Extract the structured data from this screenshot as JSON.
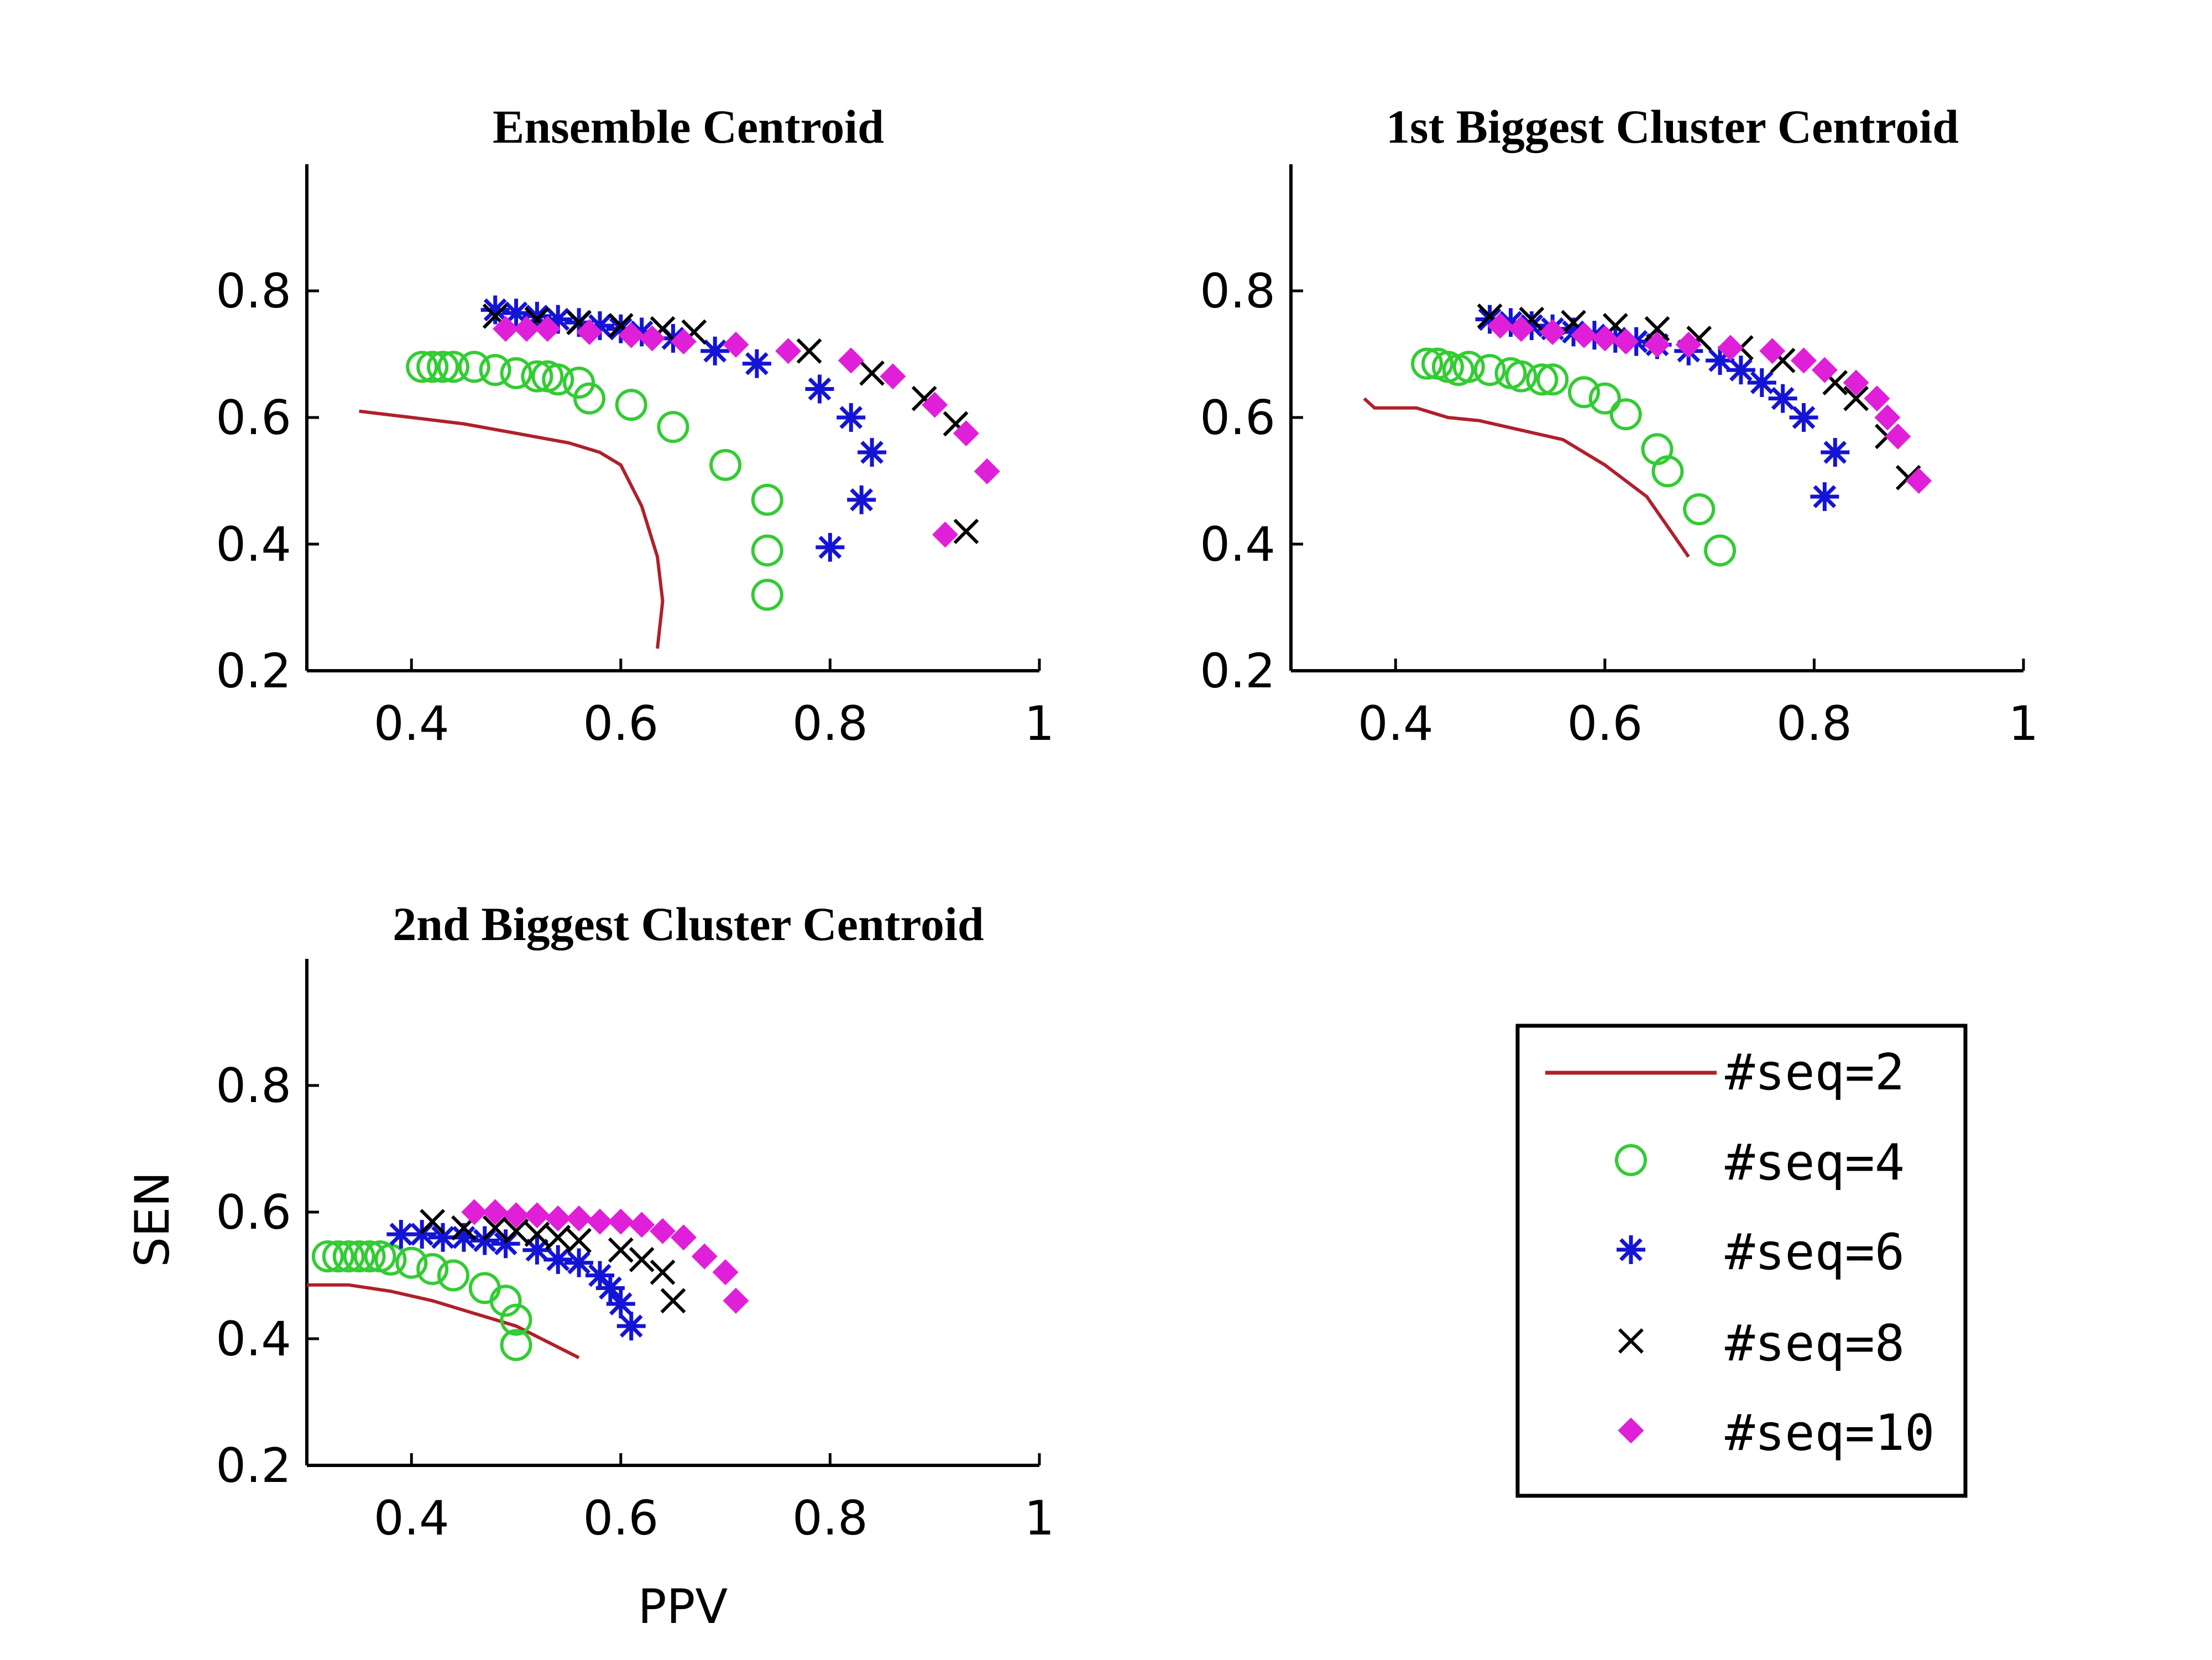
{
  "colors": {
    "seq2": "#b0202a",
    "seq4": "#33cc33",
    "seq6": "#1414d6",
    "seq8": "#000000",
    "seq10": "#e020d8"
  },
  "chart_data": [
    {
      "type": "line",
      "title": "Ensemble Centroid",
      "xlabel": "",
      "ylabel": "",
      "xlim": [
        0.3,
        1.0
      ],
      "ylim": [
        0.2,
        1.0
      ],
      "xticks": [
        "0.4",
        "0.6",
        "0.8",
        "1"
      ],
      "yticks": [
        "0.2",
        "0.4",
        "0.6",
        "0.8"
      ],
      "series": [
        {
          "key": "seq2",
          "style": "line",
          "points": [
            [
              0.35,
              0.61
            ],
            [
              0.4,
              0.6
            ],
            [
              0.45,
              0.59
            ],
            [
              0.5,
              0.575
            ],
            [
              0.55,
              0.56
            ],
            [
              0.58,
              0.545
            ],
            [
              0.6,
              0.525
            ],
            [
              0.62,
              0.46
            ],
            [
              0.635,
              0.38
            ],
            [
              0.64,
              0.31
            ],
            [
              0.635,
              0.235
            ]
          ]
        },
        {
          "key": "seq4",
          "style": "circle",
          "points": [
            [
              0.41,
              0.68
            ],
            [
              0.42,
              0.68
            ],
            [
              0.43,
              0.68
            ],
            [
              0.44,
              0.68
            ],
            [
              0.46,
              0.68
            ],
            [
              0.48,
              0.675
            ],
            [
              0.5,
              0.67
            ],
            [
              0.52,
              0.665
            ],
            [
              0.54,
              0.66
            ],
            [
              0.56,
              0.655
            ],
            [
              0.53,
              0.665
            ],
            [
              0.57,
              0.63
            ],
            [
              0.61,
              0.62
            ],
            [
              0.65,
              0.585
            ],
            [
              0.7,
              0.525
            ],
            [
              0.74,
              0.47
            ],
            [
              0.74,
              0.39
            ],
            [
              0.74,
              0.32
            ]
          ]
        },
        {
          "key": "seq6",
          "style": "asterisk",
          "points": [
            [
              0.48,
              0.77
            ],
            [
              0.5,
              0.765
            ],
            [
              0.52,
              0.76
            ],
            [
              0.54,
              0.755
            ],
            [
              0.56,
              0.75
            ],
            [
              0.58,
              0.745
            ],
            [
              0.6,
              0.74
            ],
            [
              0.62,
              0.735
            ],
            [
              0.65,
              0.725
            ],
            [
              0.69,
              0.705
            ],
            [
              0.73,
              0.685
            ],
            [
              0.79,
              0.645
            ],
            [
              0.82,
              0.6
            ],
            [
              0.84,
              0.545
            ],
            [
              0.83,
              0.47
            ],
            [
              0.8,
              0.395
            ]
          ]
        },
        {
          "key": "seq8",
          "style": "x",
          "points": [
            [
              0.48,
              0.76
            ],
            [
              0.52,
              0.755
            ],
            [
              0.56,
              0.75
            ],
            [
              0.6,
              0.745
            ],
            [
              0.64,
              0.74
            ],
            [
              0.67,
              0.735
            ],
            [
              0.78,
              0.705
            ],
            [
              0.84,
              0.67
            ],
            [
              0.89,
              0.63
            ],
            [
              0.92,
              0.59
            ],
            [
              0.93,
              0.42
            ]
          ]
        },
        {
          "key": "seq10",
          "style": "diamond",
          "points": [
            [
              0.49,
              0.74
            ],
            [
              0.51,
              0.74
            ],
            [
              0.53,
              0.74
            ],
            [
              0.57,
              0.735
            ],
            [
              0.61,
              0.73
            ],
            [
              0.63,
              0.725
            ],
            [
              0.66,
              0.72
            ],
            [
              0.71,
              0.715
            ],
            [
              0.76,
              0.705
            ],
            [
              0.82,
              0.69
            ],
            [
              0.86,
              0.665
            ],
            [
              0.9,
              0.62
            ],
            [
              0.93,
              0.575
            ],
            [
              0.95,
              0.515
            ],
            [
              0.91,
              0.415
            ]
          ]
        }
      ]
    },
    {
      "type": "line",
      "title": "1st Biggest Cluster Centroid",
      "xlabel": "",
      "ylabel": "",
      "xlim": [
        0.3,
        1.0
      ],
      "ylim": [
        0.2,
        1.0
      ],
      "xticks": [
        "0.4",
        "0.6",
        "0.8",
        "1"
      ],
      "yticks": [
        "0.2",
        "0.4",
        "0.6",
        "0.8"
      ],
      "series": [
        {
          "key": "seq2",
          "style": "line",
          "points": [
            [
              0.37,
              0.63
            ],
            [
              0.38,
              0.615
            ],
            [
              0.42,
              0.615
            ],
            [
              0.45,
              0.6
            ],
            [
              0.48,
              0.595
            ],
            [
              0.52,
              0.58
            ],
            [
              0.56,
              0.565
            ],
            [
              0.6,
              0.525
            ],
            [
              0.64,
              0.475
            ],
            [
              0.68,
              0.38
            ]
          ]
        },
        {
          "key": "seq4",
          "style": "circle",
          "points": [
            [
              0.43,
              0.685
            ],
            [
              0.44,
              0.685
            ],
            [
              0.45,
              0.68
            ],
            [
              0.46,
              0.675
            ],
            [
              0.47,
              0.68
            ],
            [
              0.49,
              0.675
            ],
            [
              0.51,
              0.67
            ],
            [
              0.52,
              0.665
            ],
            [
              0.54,
              0.66
            ],
            [
              0.55,
              0.66
            ],
            [
              0.58,
              0.64
            ],
            [
              0.6,
              0.63
            ],
            [
              0.62,
              0.605
            ],
            [
              0.65,
              0.55
            ],
            [
              0.66,
              0.515
            ],
            [
              0.69,
              0.455
            ],
            [
              0.71,
              0.39
            ]
          ]
        },
        {
          "key": "seq6",
          "style": "asterisk",
          "points": [
            [
              0.49,
              0.755
            ],
            [
              0.51,
              0.75
            ],
            [
              0.53,
              0.745
            ],
            [
              0.55,
              0.74
            ],
            [
              0.57,
              0.735
            ],
            [
              0.59,
              0.73
            ],
            [
              0.61,
              0.725
            ],
            [
              0.63,
              0.72
            ],
            [
              0.65,
              0.715
            ],
            [
              0.68,
              0.705
            ],
            [
              0.71,
              0.69
            ],
            [
              0.73,
              0.675
            ],
            [
              0.75,
              0.655
            ],
            [
              0.77,
              0.63
            ],
            [
              0.79,
              0.6
            ],
            [
              0.82,
              0.545
            ],
            [
              0.81,
              0.475
            ]
          ]
        },
        {
          "key": "seq8",
          "style": "x",
          "points": [
            [
              0.49,
              0.76
            ],
            [
              0.53,
              0.755
            ],
            [
              0.57,
              0.75
            ],
            [
              0.61,
              0.745
            ],
            [
              0.65,
              0.74
            ],
            [
              0.69,
              0.725
            ],
            [
              0.73,
              0.71
            ],
            [
              0.77,
              0.69
            ],
            [
              0.82,
              0.655
            ],
            [
              0.84,
              0.63
            ],
            [
              0.87,
              0.57
            ],
            [
              0.89,
              0.505
            ]
          ]
        },
        {
          "key": "seq10",
          "style": "diamond",
          "points": [
            [
              0.5,
              0.745
            ],
            [
              0.52,
              0.74
            ],
            [
              0.55,
              0.735
            ],
            [
              0.58,
              0.73
            ],
            [
              0.6,
              0.725
            ],
            [
              0.62,
              0.72
            ],
            [
              0.65,
              0.715
            ],
            [
              0.68,
              0.715
            ],
            [
              0.72,
              0.71
            ],
            [
              0.76,
              0.705
            ],
            [
              0.79,
              0.69
            ],
            [
              0.81,
              0.675
            ],
            [
              0.84,
              0.655
            ],
            [
              0.86,
              0.63
            ],
            [
              0.87,
              0.6
            ],
            [
              0.88,
              0.57
            ],
            [
              0.9,
              0.5
            ]
          ]
        }
      ]
    },
    {
      "type": "line",
      "title": "2nd Biggest Cluster Centroid",
      "xlabel": "PPV",
      "ylabel": "SEN",
      "xlim": [
        0.3,
        1.0
      ],
      "ylim": [
        0.2,
        1.0
      ],
      "xticks": [
        "0.4",
        "0.6",
        "0.8",
        "1"
      ],
      "yticks": [
        "0.2",
        "0.4",
        "0.6",
        "0.8"
      ],
      "series": [
        {
          "key": "seq2",
          "style": "line",
          "points": [
            [
              0.3,
              0.485
            ],
            [
              0.34,
              0.485
            ],
            [
              0.38,
              0.475
            ],
            [
              0.42,
              0.46
            ],
            [
              0.46,
              0.44
            ],
            [
              0.5,
              0.42
            ],
            [
              0.53,
              0.395
            ],
            [
              0.56,
              0.37
            ]
          ]
        },
        {
          "key": "seq4",
          "style": "circle",
          "points": [
            [
              0.32,
              0.53
            ],
            [
              0.33,
              0.53
            ],
            [
              0.34,
              0.53
            ],
            [
              0.35,
              0.53
            ],
            [
              0.36,
              0.53
            ],
            [
              0.37,
              0.53
            ],
            [
              0.38,
              0.525
            ],
            [
              0.4,
              0.52
            ],
            [
              0.42,
              0.51
            ],
            [
              0.44,
              0.5
            ],
            [
              0.47,
              0.48
            ],
            [
              0.49,
              0.46
            ],
            [
              0.5,
              0.43
            ],
            [
              0.5,
              0.39
            ]
          ]
        },
        {
          "key": "seq6",
          "style": "asterisk",
          "points": [
            [
              0.39,
              0.565
            ],
            [
              0.41,
              0.565
            ],
            [
              0.43,
              0.56
            ],
            [
              0.45,
              0.56
            ],
            [
              0.47,
              0.555
            ],
            [
              0.49,
              0.55
            ],
            [
              0.52,
              0.54
            ],
            [
              0.54,
              0.525
            ],
            [
              0.56,
              0.52
            ],
            [
              0.58,
              0.5
            ],
            [
              0.59,
              0.48
            ],
            [
              0.6,
              0.455
            ],
            [
              0.61,
              0.42
            ]
          ]
        },
        {
          "key": "seq8",
          "style": "x",
          "points": [
            [
              0.42,
              0.585
            ],
            [
              0.45,
              0.575
            ],
            [
              0.48,
              0.575
            ],
            [
              0.5,
              0.57
            ],
            [
              0.52,
              0.565
            ],
            [
              0.54,
              0.56
            ],
            [
              0.56,
              0.555
            ],
            [
              0.6,
              0.54
            ],
            [
              0.62,
              0.525
            ],
            [
              0.64,
              0.505
            ],
            [
              0.65,
              0.46
            ]
          ]
        },
        {
          "key": "seq10",
          "style": "diamond",
          "points": [
            [
              0.46,
              0.6
            ],
            [
              0.48,
              0.6
            ],
            [
              0.5,
              0.595
            ],
            [
              0.52,
              0.595
            ],
            [
              0.54,
              0.59
            ],
            [
              0.56,
              0.59
            ],
            [
              0.58,
              0.585
            ],
            [
              0.6,
              0.585
            ],
            [
              0.62,
              0.58
            ],
            [
              0.64,
              0.57
            ],
            [
              0.66,
              0.56
            ],
            [
              0.68,
              0.53
            ],
            [
              0.7,
              0.505
            ],
            [
              0.71,
              0.46
            ]
          ]
        }
      ]
    }
  ],
  "legend": {
    "placement": "bottom-right",
    "entries": [
      {
        "key": "seq2",
        "style": "line",
        "label": "#seq=2"
      },
      {
        "key": "seq4",
        "style": "circle",
        "label": "#seq=4"
      },
      {
        "key": "seq6",
        "style": "asterisk",
        "label": "#seq=6"
      },
      {
        "key": "seq8",
        "style": "x",
        "label": "#seq=8"
      },
      {
        "key": "seq10",
        "style": "diamond",
        "label": "#seq=10"
      }
    ]
  }
}
